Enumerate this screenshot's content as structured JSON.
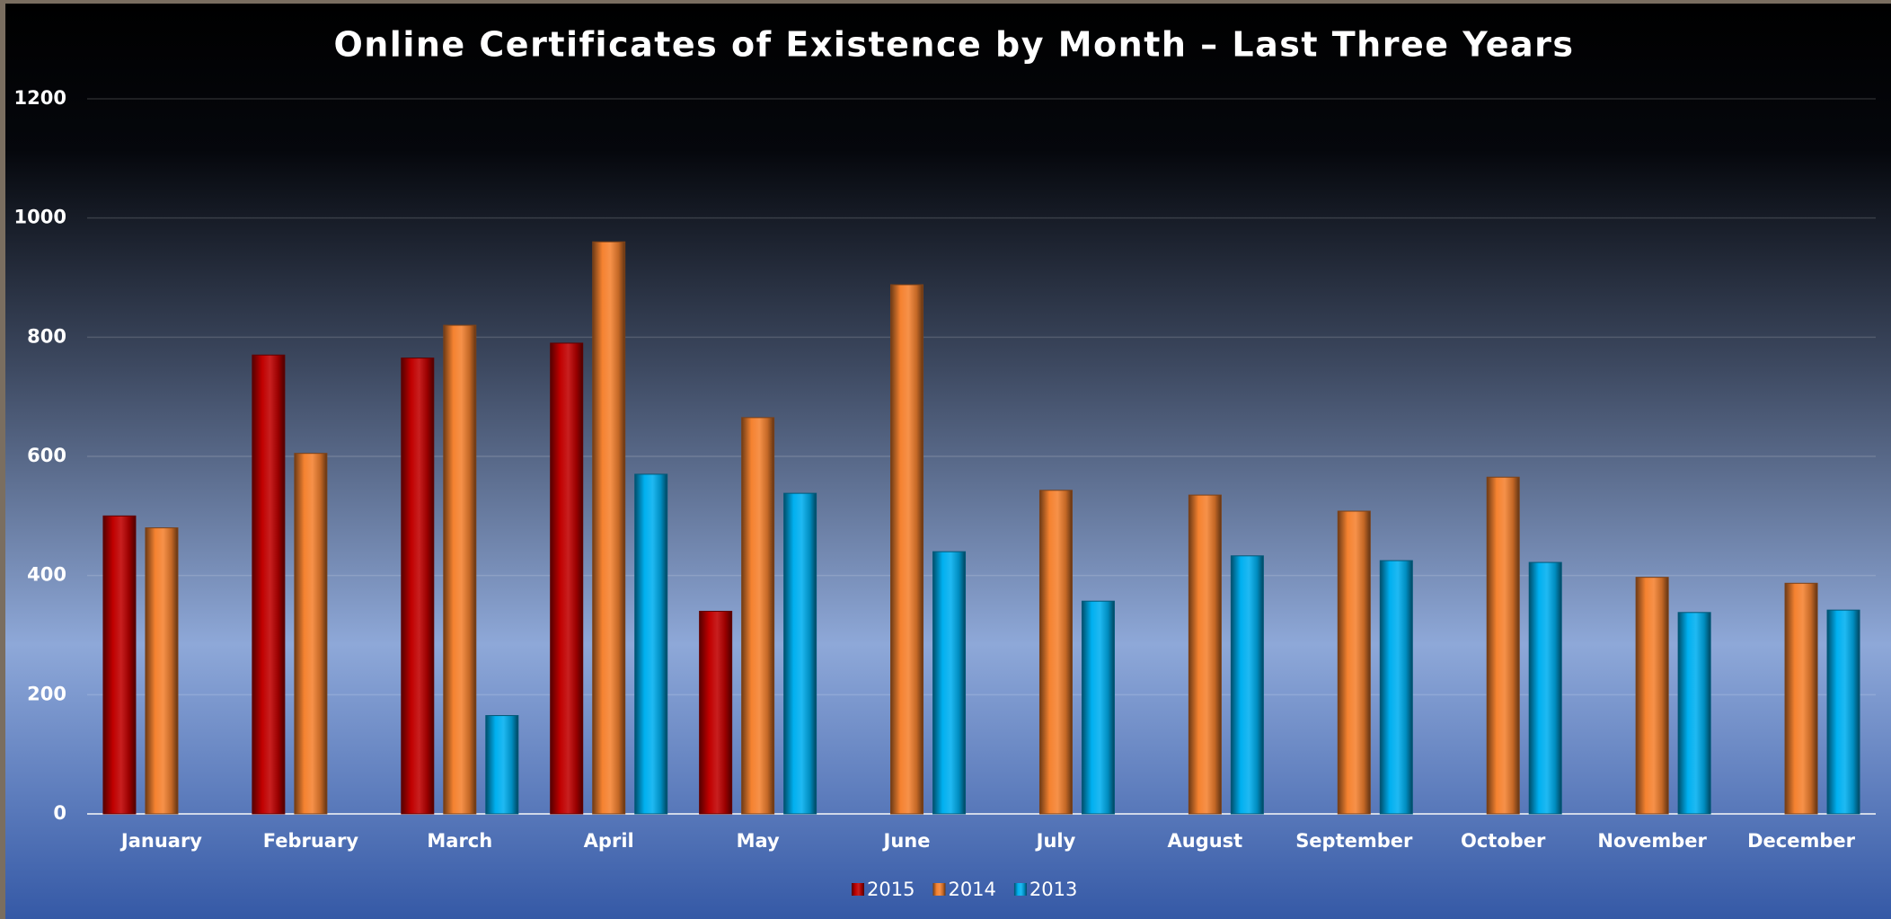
{
  "chart_data": {
    "type": "bar",
    "title": "Online Certificates of Existence by Month – Last Three Years",
    "categories": [
      "January",
      "February",
      "March",
      "April",
      "May",
      "June",
      "July",
      "August",
      "September",
      "October",
      "November",
      "December"
    ],
    "series": [
      {
        "name": "2015",
        "color": "#c00000",
        "values": [
          500,
          770,
          765,
          790,
          340,
          null,
          null,
          null,
          null,
          null,
          null,
          null
        ]
      },
      {
        "name": "2014",
        "color": "#f58230",
        "values": [
          480,
          605,
          820,
          960,
          665,
          888,
          543,
          535,
          508,
          565,
          397,
          387
        ]
      },
      {
        "name": "2013",
        "color": "#00b0f0",
        "values": [
          null,
          null,
          165,
          570,
          538,
          440,
          357,
          433,
          425,
          422,
          338,
          342
        ]
      }
    ],
    "ylim": [
      0,
      1200
    ],
    "yticks": [
      0,
      200,
      400,
      600,
      800,
      1000,
      1200
    ],
    "grid": true,
    "legend": "bottom"
  }
}
